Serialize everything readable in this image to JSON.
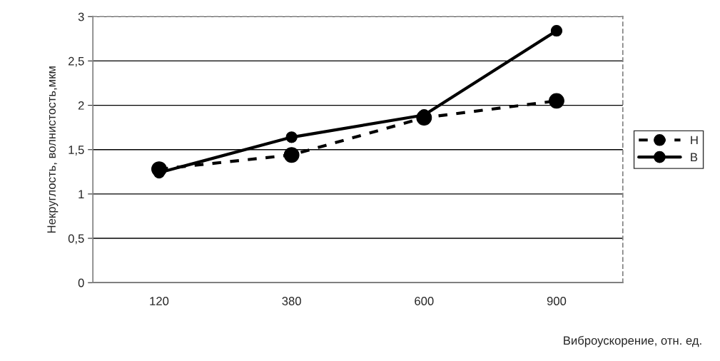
{
  "chart_data": {
    "type": "line",
    "xlabel": "Виброускорение, отн. ед.",
    "ylabel": "Некруглость, волнистость,мкм",
    "categories": [
      "120",
      "380",
      "600",
      "900"
    ],
    "series": [
      {
        "name": "Н",
        "color": "#000000",
        "values": [
          1.28,
          1.44,
          1.86,
          2.05
        ],
        "line_style": "dashed",
        "marker": "circle"
      },
      {
        "name": "В",
        "color": "#000000",
        "values": [
          1.24,
          1.64,
          1.89,
          2.84
        ],
        "line_style": "solid",
        "marker": "circle"
      }
    ],
    "ylim": [
      0,
      3
    ],
    "yticks": [
      0,
      {
        "value": 0.5,
        "label": "0,5"
      },
      1,
      {
        "value": 1.5,
        "label": "1,5"
      },
      2,
      {
        "value": 2.5,
        "label": "2,5"
      },
      3
    ],
    "grid": "y",
    "legend": "right"
  }
}
